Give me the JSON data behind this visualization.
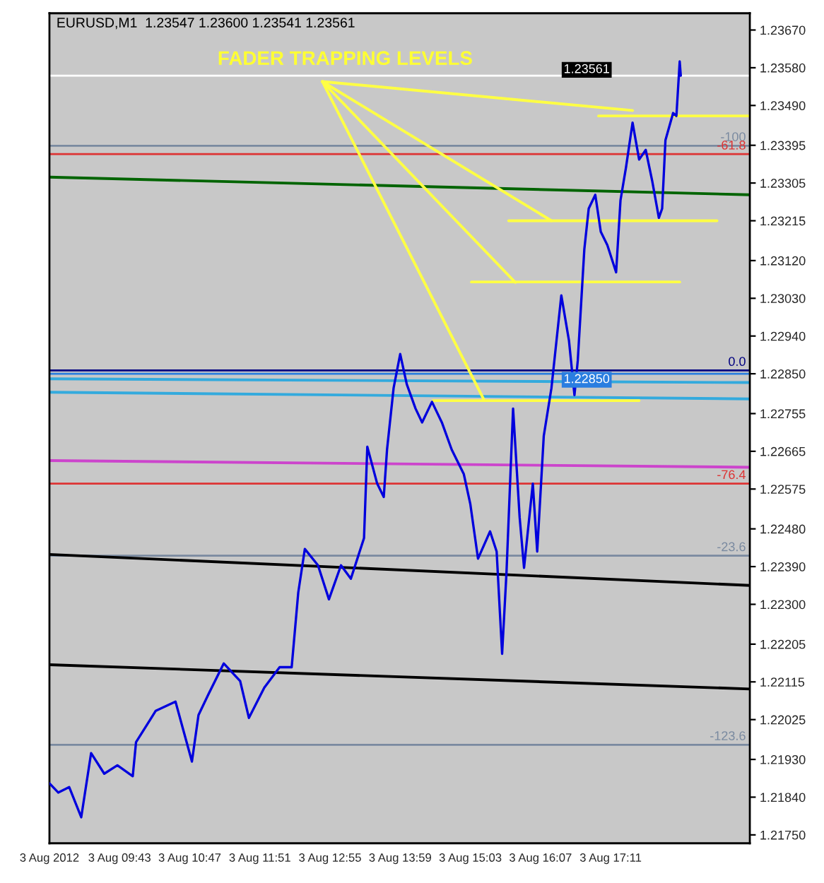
{
  "chart_data": {
    "type": "line",
    "title": "EURUSD,M1  1.23547 1.23600 1.23541 1.23561",
    "annotations": [
      "FADER TRAPPING LEVELS",
      {
        "text": "-100",
        "x": "2012-08-03T19:18",
        "y": 1.23394
      },
      {
        "text": "-61.8",
        "x": "2012-08-03T19:18",
        "y": 1.23374
      },
      {
        "text": "0.0",
        "x": "2012-08-03T19:18",
        "y": 1.22858
      },
      {
        "text": "-76.4",
        "x": "2012-08-03T19:18",
        "y": 1.22588
      },
      {
        "text": "-23.6",
        "x": "2012-08-03T19:18",
        "y": 1.22416
      },
      {
        "text": "-123.6",
        "x": "2012-08-03T19:18",
        "y": 1.21965
      }
    ],
    "xlim": [
      "2012-08-03T08:39",
      "2012-08-03T19:18"
    ],
    "xticks": [
      {
        "value": "2012-08-03T08:39",
        "label": "3 Aug 2012"
      },
      {
        "value": "2012-08-03T09:43",
        "label": "3 Aug 09:43"
      },
      {
        "value": "2012-08-03T10:47",
        "label": "3 Aug 10:47"
      },
      {
        "value": "2012-08-03T11:51",
        "label": "3 Aug 11:51"
      },
      {
        "value": "2012-08-03T12:55",
        "label": "3 Aug 12:55"
      },
      {
        "value": "2012-08-03T13:59",
        "label": "3 Aug 13:59"
      },
      {
        "value": "2012-08-03T15:03",
        "label": "3 Aug 15:03"
      },
      {
        "value": "2012-08-03T16:07",
        "label": "3 Aug 16:07"
      },
      {
        "value": "2012-08-03T17:11",
        "label": "3 Aug 17:11"
      }
    ],
    "ylim": [
      1.2173,
      1.2371
    ],
    "yticks": [
      {
        "value": 1.2367,
        "label": "1.23670"
      },
      {
        "value": 1.2358,
        "label": "1.23580"
      },
      {
        "value": 1.2349,
        "label": "1.23490"
      },
      1.23395,
      1.23305,
      1.23215,
      {
        "value": 1.2312,
        "label": "1.23120"
      },
      {
        "value": 1.2303,
        "label": "1.23030"
      },
      {
        "value": 1.2294,
        "label": "1.22940"
      },
      {
        "value": 1.2285,
        "label": "1.22850"
      },
      1.22755,
      1.22665,
      1.22575,
      {
        "value": 1.2248,
        "label": "1.22480"
      },
      {
        "value": 1.2239,
        "label": "1.22390"
      },
      {
        "value": 1.223,
        "label": "1.22300"
      },
      1.22205,
      1.22115,
      1.22025,
      {
        "value": 1.2193,
        "label": "1.21930"
      },
      {
        "value": 1.2184,
        "label": "1.21840"
      },
      {
        "value": 1.2175,
        "label": "1.21750"
      }
    ],
    "grid": false,
    "legend": false,
    "marker": "none",
    "line_style": "solid",
    "series": [
      {
        "color": "#0000dd",
        "x": [
          "2012-08-03T08:39",
          "2012-08-03T08:47",
          "2012-08-03T08:57",
          "2012-08-03T09:08",
          "2012-08-03T09:17",
          "2012-08-03T09:29",
          "2012-08-03T09:41",
          "2012-08-03T09:55",
          "2012-08-03T09:58",
          "2012-08-03T10:16",
          "2012-08-03T10:34",
          "2012-08-03T10:49",
          "2012-08-03T10:55",
          "2012-08-03T11:04",
          "2012-08-03T11:18",
          "2012-08-03T11:33",
          "2012-08-03T11:41",
          "2012-08-03T11:55",
          "2012-08-03T12:09",
          "2012-08-03T12:20",
          "2012-08-03T12:26",
          "2012-08-03T12:32",
          "2012-08-03T12:44",
          "2012-08-03T12:54",
          "2012-08-03T13:05",
          "2012-08-03T13:14",
          "2012-08-03T13:26",
          "2012-08-03T13:29",
          "2012-08-03T13:38",
          "2012-08-03T13:44",
          "2012-08-03T13:47",
          "2012-08-03T13:53",
          "2012-08-03T13:59",
          "2012-08-03T14:05",
          "2012-08-03T14:13",
          "2012-08-03T14:19",
          "2012-08-03T14:28",
          "2012-08-03T14:37",
          "2012-08-03T14:46",
          "2012-08-03T14:57",
          "2012-08-03T15:03",
          "2012-08-03T15:10",
          "2012-08-03T15:21",
          "2012-08-03T15:27",
          "2012-08-03T15:30",
          "2012-08-03T15:32",
          "2012-08-03T15:36",
          "2012-08-03T15:42",
          "2012-08-03T15:48",
          "2012-08-03T15:52",
          "2012-08-03T16:00",
          "2012-08-03T16:04",
          "2012-08-03T16:10",
          "2012-08-03T16:17",
          "2012-08-03T16:26",
          "2012-08-03T16:33",
          "2012-08-03T16:38",
          "2012-08-03T16:41",
          "2012-08-03T16:47",
          "2012-08-03T16:51",
          "2012-08-03T16:57",
          "2012-08-03T17:02",
          "2012-08-03T17:08",
          "2012-08-03T17:16",
          "2012-08-03T17:20",
          "2012-08-03T17:25",
          "2012-08-03T17:31",
          "2012-08-03T17:37",
          "2012-08-03T17:43",
          "2012-08-03T17:49",
          "2012-08-03T17:55",
          "2012-08-03T17:58",
          "2012-08-03T18:01",
          "2012-08-03T18:08",
          "2012-08-03T18:11",
          "2012-08-03T18:14",
          "2012-08-03T18:15"
        ],
        "values": [
          1.21873,
          1.21851,
          1.21864,
          1.21792,
          1.21945,
          1.21896,
          1.21916,
          1.2189,
          1.21971,
          1.22046,
          1.22068,
          1.21925,
          1.22036,
          1.22085,
          1.22159,
          1.22117,
          1.22029,
          1.22101,
          1.2215,
          1.2215,
          1.22328,
          1.22432,
          1.22393,
          1.22312,
          1.22393,
          1.22361,
          1.22458,
          1.22676,
          1.22588,
          1.22556,
          1.22669,
          1.22816,
          1.22897,
          1.22825,
          1.22767,
          1.22734,
          1.22783,
          1.22734,
          1.22669,
          1.22611,
          1.22539,
          1.22409,
          1.22474,
          1.22426,
          1.22279,
          1.22182,
          1.22377,
          1.22767,
          1.22507,
          1.22387,
          1.22588,
          1.22426,
          1.22702,
          1.22816,
          1.23037,
          1.22929,
          1.22799,
          1.22881,
          1.23147,
          1.23244,
          1.23277,
          1.23189,
          1.23157,
          1.23092,
          1.23264,
          1.23342,
          1.23449,
          1.23361,
          1.23384,
          1.23309,
          1.23222,
          1.23244,
          1.23407,
          1.23472,
          1.23465,
          1.23595,
          1.23561
        ]
      },
      {
        "color": "#006400",
        "x": [
          "2012-08-03T08:39",
          "2012-08-03T19:18"
        ],
        "values": [
          1.23319,
          1.23277
        ]
      },
      {
        "color": "#000000",
        "x": [
          "2012-08-03T08:39",
          "2012-08-03T19:18"
        ],
        "values": [
          1.22419,
          1.22345
        ]
      },
      {
        "color": "#000000",
        "x": [
          "2012-08-03T08:39",
          "2012-08-03T19:18"
        ],
        "values": [
          1.22156,
          1.22098
        ]
      },
      {
        "color": "#cc44cc",
        "x": [
          "2012-08-03T08:39",
          "2012-08-03T19:18"
        ],
        "values": [
          1.22643,
          1.22627
        ]
      },
      {
        "color": "#33aadd",
        "x": [
          "2012-08-03T08:39",
          "2012-08-03T19:18"
        ],
        "values": [
          1.22838,
          1.22829
        ]
      },
      {
        "color": "#33aadd",
        "x": [
          "2012-08-03T08:39",
          "2012-08-03T19:18"
        ],
        "values": [
          1.22806,
          1.2279
        ]
      },
      {
        "color": "#ffff44",
        "x": [
          "2012-08-03T12:48",
          "2012-08-03T17:31"
        ],
        "values": [
          1.23547,
          1.23478
        ]
      },
      {
        "color": "#ffff44",
        "x": [
          "2012-08-03T12:48",
          "2012-08-03T16:17"
        ],
        "values": [
          1.23547,
          1.23215
        ]
      },
      {
        "color": "#ffff44",
        "x": [
          "2012-08-03T12:48",
          "2012-08-03T15:44"
        ],
        "values": [
          1.23547,
          1.23068
        ]
      },
      {
        "color": "#ffff44",
        "x": [
          "2012-08-03T12:48",
          "2012-08-03T15:15"
        ],
        "values": [
          1.23547,
          1.2279
        ]
      },
      {
        "color": "#ffff44",
        "x": [
          "2012-08-03T17:00",
          "2012-08-03T19:18"
        ],
        "values": [
          1.23465,
          1.23465
        ]
      },
      {
        "color": "#ffff44",
        "x": [
          "2012-08-03T15:38",
          "2012-08-03T18:48"
        ],
        "values": [
          1.23215,
          1.23215
        ]
      },
      {
        "color": "#ffff44",
        "x": [
          "2012-08-03T15:04",
          "2012-08-03T18:14"
        ],
        "values": [
          1.23069,
          1.23069
        ]
      },
      {
        "color": "#ffff44",
        "x": [
          "2012-08-03T14:29",
          "2012-08-03T17:37"
        ],
        "values": [
          1.22786,
          1.22786
        ]
      }
    ],
    "ref_lines": [
      {
        "axis": "y",
        "value": 1.23561,
        "label": "1.23561",
        "color": "#ffffff"
      },
      {
        "axis": "y",
        "value": 1.23394,
        "color": "#7a8aa0"
      },
      {
        "axis": "y",
        "value": 1.23374,
        "color": "#dd3333"
      },
      {
        "axis": "y",
        "value": 1.22858,
        "color": "#000080"
      },
      {
        "axis": "y",
        "value": 1.2285,
        "label": "1.22850",
        "color": "#2a7ee0"
      },
      {
        "axis": "y",
        "value": 1.22588,
        "color": "#dd3333"
      },
      {
        "axis": "y",
        "value": 1.22416,
        "color": "#7a8aa0"
      },
      {
        "axis": "y",
        "value": 1.21965,
        "color": "#7a8aa0"
      }
    ]
  }
}
